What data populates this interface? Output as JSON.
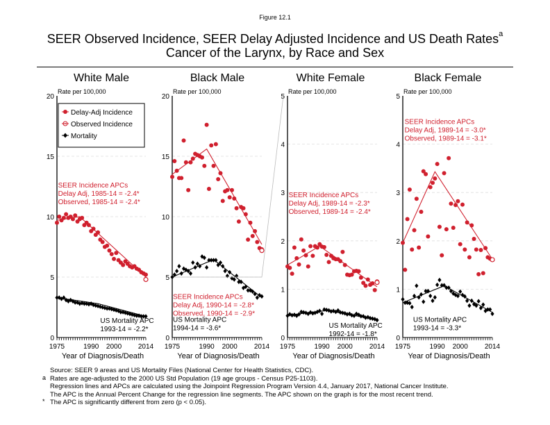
{
  "figure_label": "Figure 12.1",
  "title_line1": "SEER Observed Incidence, SEER Delay Adjusted Incidence and US Death Rates",
  "title_superscript": "a",
  "title_line2": "Cancer of the Larynx, by Race and Sex",
  "colors": {
    "incidence": "#d0202e",
    "mortality": "#000000",
    "grid": "#dddddd",
    "connector": "#bbbbbb"
  },
  "legend": {
    "items": [
      {
        "label": "Delay-Adj Incidence",
        "symbol": "filled-circle",
        "color": "#d0202e"
      },
      {
        "label": "Observed Incidence",
        "symbol": "open-circle",
        "color": "#d0202e"
      },
      {
        "label": "Mortality",
        "symbol": "filled-diamond",
        "color": "#000000"
      }
    ]
  },
  "footnotes": [
    {
      "mark": "",
      "text": "Source: SEER 9 areas and US Mortality Files (National Center for Health Statistics, CDC)."
    },
    {
      "mark": "a",
      "text": "Rates are age-adjusted to the 2000 US Std Population (19 age groups - Census P25-1103)."
    },
    {
      "mark": "",
      "text": "Regression lines and APCs are calculated using the Joinpoint Regression Program Version 4.4, January 2017, National Cancer Institute."
    },
    {
      "mark": "",
      "text": "The APC is the Annual Percent Change for the regression line segments. The APC shown on the graph is for the most recent trend."
    },
    {
      "mark": "*",
      "text": "The APC is significantly different from zero (p < 0.05)."
    }
  ],
  "chart_data": [
    {
      "type": "scatter",
      "title": "White Male",
      "ylabel": "Rate per 100,000",
      "xlabel": "Year of Diagnosis/Death",
      "xlim": [
        1975,
        2014
      ],
      "ylim": [
        0,
        20
      ],
      "yticks": [
        0,
        5,
        10,
        15,
        20
      ],
      "xticks": [
        1975,
        1990,
        2000,
        2014
      ],
      "grid": true,
      "legend_position": "top-left",
      "apc_incidence": [
        "SEER Incidence APCs",
        "Delay Adj, 1985-14 = -2.4*",
        "Observed, 1985-14 = -2.4*"
      ],
      "apc_mortality": [
        "US Mortality APC",
        "1993-14 = -2.2*"
      ],
      "apc_incidence_pos": [
        1975.5,
        12.4
      ],
      "apc_mortality_pos": [
        1994,
        1.2
      ],
      "delay_adj": [
        9.5,
        10.0,
        9.7,
        9.9,
        10.2,
        9.9,
        10.0,
        9.8,
        10.1,
        9.6,
        9.8,
        9.9,
        9.3,
        9.5,
        9.3,
        8.8,
        9.0,
        8.5,
        8.7,
        8.1,
        7.9,
        7.5,
        7.6,
        7.2,
        6.9,
        6.5,
        7.0,
        6.4,
        6.2,
        6.0,
        6.3,
        6.1,
        5.9,
        5.8,
        5.9,
        5.7,
        5.6,
        5.4,
        5.3,
        5.2
      ],
      "observed_last": 4.8,
      "observed_last_year": 2014,
      "delay_adj_trend": [
        [
          1975,
          9.7
        ],
        [
          1985,
          10.0
        ],
        [
          2014,
          5.0
        ]
      ],
      "mortality": [
        3.3,
        3.3,
        3.2,
        3.3,
        3.1,
        3.0,
        3.1,
        3.0,
        2.9,
        2.9,
        2.8,
        2.85,
        2.8,
        2.8,
        2.75,
        2.8,
        2.7,
        2.65,
        2.6,
        2.55,
        2.5,
        2.45,
        2.4,
        2.4,
        2.35,
        2.3,
        2.25,
        2.2,
        2.1,
        2.1,
        2.05,
        2.0,
        1.95,
        1.9,
        1.85,
        1.8,
        1.8,
        1.75,
        1.75,
        1.75
      ],
      "mortality_trend": [
        [
          1975,
          3.3
        ],
        [
          1993,
          2.8
        ],
        [
          2014,
          1.75
        ]
      ]
    },
    {
      "type": "scatter",
      "title": "Black Male",
      "ylabel": "Rate per 100,000",
      "xlabel": "Year of Diagnosis/Death",
      "xlim": [
        1975,
        2014
      ],
      "ylim": [
        0,
        20
      ],
      "yticks": [
        0,
        5,
        10,
        15,
        20
      ],
      "xticks": [
        1975,
        1990,
        2000,
        2014
      ],
      "grid": true,
      "apc_incidence": [
        "SEER Incidence APCs",
        "Delay Adj, 1990-14 = -2.8*",
        "Observed, 1990-14 = -2.9*"
      ],
      "apc_mortality": [
        "US Mortality APC",
        "1994-14 = -3.6*"
      ],
      "apc_incidence_pos": [
        1975.3,
        3.2
      ],
      "apc_mortality_pos": [
        1975.3,
        1.3
      ],
      "delay_adj": [
        13.3,
        14.6,
        13.8,
        13.2,
        13.2,
        16.3,
        14.5,
        12.2,
        14.5,
        14.8,
        15.2,
        15.1,
        15.0,
        14.9,
        14.2,
        17.6,
        12.3,
        15.9,
        14.2,
        16.0,
        13.1,
        13.6,
        11.3,
        12.1,
        12.2,
        11.6,
        12.2,
        11.5,
        10.7,
        9.6,
        10.8,
        10.7,
        10.2,
        8.1,
        9.5,
        8.4,
        8.8,
        7.9,
        7.4,
        7.3
      ],
      "observed_last": 7.2,
      "observed_last_year": 2014,
      "delay_adj_trend": [
        [
          1975,
          13.5
        ],
        [
          1990,
          15.6
        ],
        [
          2014,
          7.7
        ]
      ],
      "mortality": [
        5.0,
        5.2,
        5.5,
        5.9,
        5.3,
        5.7,
        5.6,
        5.5,
        5.3,
        6.2,
        5.8,
        6.1,
        5.9,
        6.7,
        6.6,
        5.8,
        6.4,
        6.4,
        6.4,
        6.4,
        6.0,
        6.2,
        5.9,
        5.5,
        5.1,
        5.4,
        4.9,
        4.8,
        5.1,
        4.6,
        4.6,
        4.1,
        4.2,
        3.9,
        3.9,
        3.8,
        3.6,
        3.3,
        3.5,
        3.4
      ],
      "mortality_trend": [
        [
          1975,
          5.0
        ],
        [
          1993,
          6.45
        ],
        [
          2014,
          3.3
        ]
      ]
    },
    {
      "type": "scatter",
      "title": "White Female",
      "ylabel": "Rate per 100,000",
      "xlabel": "Year of Diagnosis/Death",
      "xlim": [
        1975,
        2014
      ],
      "ylim": [
        0,
        5
      ],
      "yticks": [
        0,
        1,
        2,
        3,
        4,
        5
      ],
      "xticks": [
        1975,
        1990,
        2000,
        2014
      ],
      "grid": true,
      "apc_incidence": [
        "SEER Incidence APCs",
        "Delay Adj, 1989-14 = -2.3*",
        "Observed, 1989-14 = -2.4*"
      ],
      "apc_mortality": [
        "US Mortality APC",
        "1992-14 = -1.8*"
      ],
      "apc_incidence_pos": [
        1975.5,
        2.9
      ],
      "apc_mortality_pos": [
        1993,
        0.2
      ],
      "delay_adj": [
        1.47,
        1.44,
        1.32,
        1.86,
        1.64,
        1.51,
        2.03,
        1.8,
        1.7,
        1.47,
        1.89,
        1.69,
        1.89,
        1.86,
        1.93,
        1.88,
        1.87,
        1.71,
        1.56,
        1.69,
        1.64,
        1.62,
        1.62,
        1.58,
        1.77,
        1.5,
        1.3,
        1.29,
        1.3,
        1.37,
        1.38,
        1.37,
        1.24,
        1.13,
        1.07,
        1.2,
        1.09,
        1.12,
        0.98,
        1.16
      ],
      "observed_last": 1.14,
      "observed_last_year": 2014,
      "delay_adj_trend": [
        [
          1975,
          1.5
        ],
        [
          1989,
          1.89
        ],
        [
          2014,
          1.05
        ]
      ],
      "mortality": [
        0.45,
        0.48,
        0.46,
        0.47,
        0.45,
        0.48,
        0.53,
        0.52,
        0.51,
        0.49,
        0.52,
        0.5,
        0.51,
        0.53,
        0.55,
        0.49,
        0.58,
        0.57,
        0.56,
        0.54,
        0.55,
        0.53,
        0.56,
        0.52,
        0.51,
        0.5,
        0.48,
        0.49,
        0.46,
        0.45,
        0.49,
        0.47,
        0.44,
        0.44,
        0.41,
        0.42,
        0.4,
        0.39,
        0.38,
        0.36
      ],
      "mortality_trend": [
        [
          1975,
          0.46
        ],
        [
          1992,
          0.56
        ],
        [
          2014,
          0.37
        ]
      ]
    },
    {
      "type": "scatter",
      "title": "Black Female",
      "ylabel": "Rate per 100,000",
      "xlabel": "Year of Diagnosis/Death",
      "xlim": [
        1975,
        2014
      ],
      "ylim": [
        0,
        5
      ],
      "yticks": [
        0,
        1,
        2,
        3,
        4,
        5
      ],
      "xticks": [
        1975,
        1990,
        2000,
        2014
      ],
      "grid": true,
      "apc_incidence": [
        "SEER Incidence APCs",
        "Delay Adj, 1989-14 = -3.0*",
        "Observed, 1989-14 = -3.1*"
      ],
      "apc_mortality": [
        "US Mortality APC",
        "1993-14 = -3.3*"
      ],
      "apc_incidence_pos": [
        1975.8,
        4.42
      ],
      "apc_mortality_pos": [
        1979.5,
        0.32
      ],
      "delay_adj": [
        1.96,
        1.4,
        2.45,
        3.06,
        1.82,
        2.22,
        2.87,
        1.86,
        2.6,
        3.44,
        3.38,
        2.09,
        3.11,
        3.2,
        3.29,
        3.59,
        2.29,
        1.7,
        3.4,
        2.24,
        3.71,
        2.77,
        2.27,
        2.74,
        2.82,
        1.93,
        2.75,
        1.82,
        2.38,
        1.66,
        2.32,
        2.04,
        1.82,
        1.31,
        1.81,
        1.33,
        1.85,
        1.66,
        1.63,
        1.61
      ],
      "observed_last": 1.61,
      "observed_last_year": 2014,
      "delay_adj_trend": [
        [
          1975,
          1.96
        ],
        [
          1989,
          3.43
        ],
        [
          2014,
          1.62
        ]
      ],
      "mortality": [
        0.79,
        0.72,
        0.72,
        0.71,
        0.63,
        0.86,
        1.07,
        0.83,
        0.89,
        0.74,
        0.96,
        0.96,
        0.86,
        0.76,
        0.83,
        1.09,
        1.19,
        1.08,
        1.08,
        1.03,
        1.03,
        0.96,
        0.91,
        0.88,
        0.86,
        0.95,
        0.88,
        0.85,
        0.76,
        0.66,
        0.76,
        0.69,
        0.66,
        0.75,
        0.61,
        0.68,
        0.55,
        0.58,
        0.58,
        0.49
      ],
      "mortality_trend": [
        [
          1975,
          0.72
        ],
        [
          1993,
          1.07
        ],
        [
          2014,
          0.52
        ]
      ]
    }
  ]
}
